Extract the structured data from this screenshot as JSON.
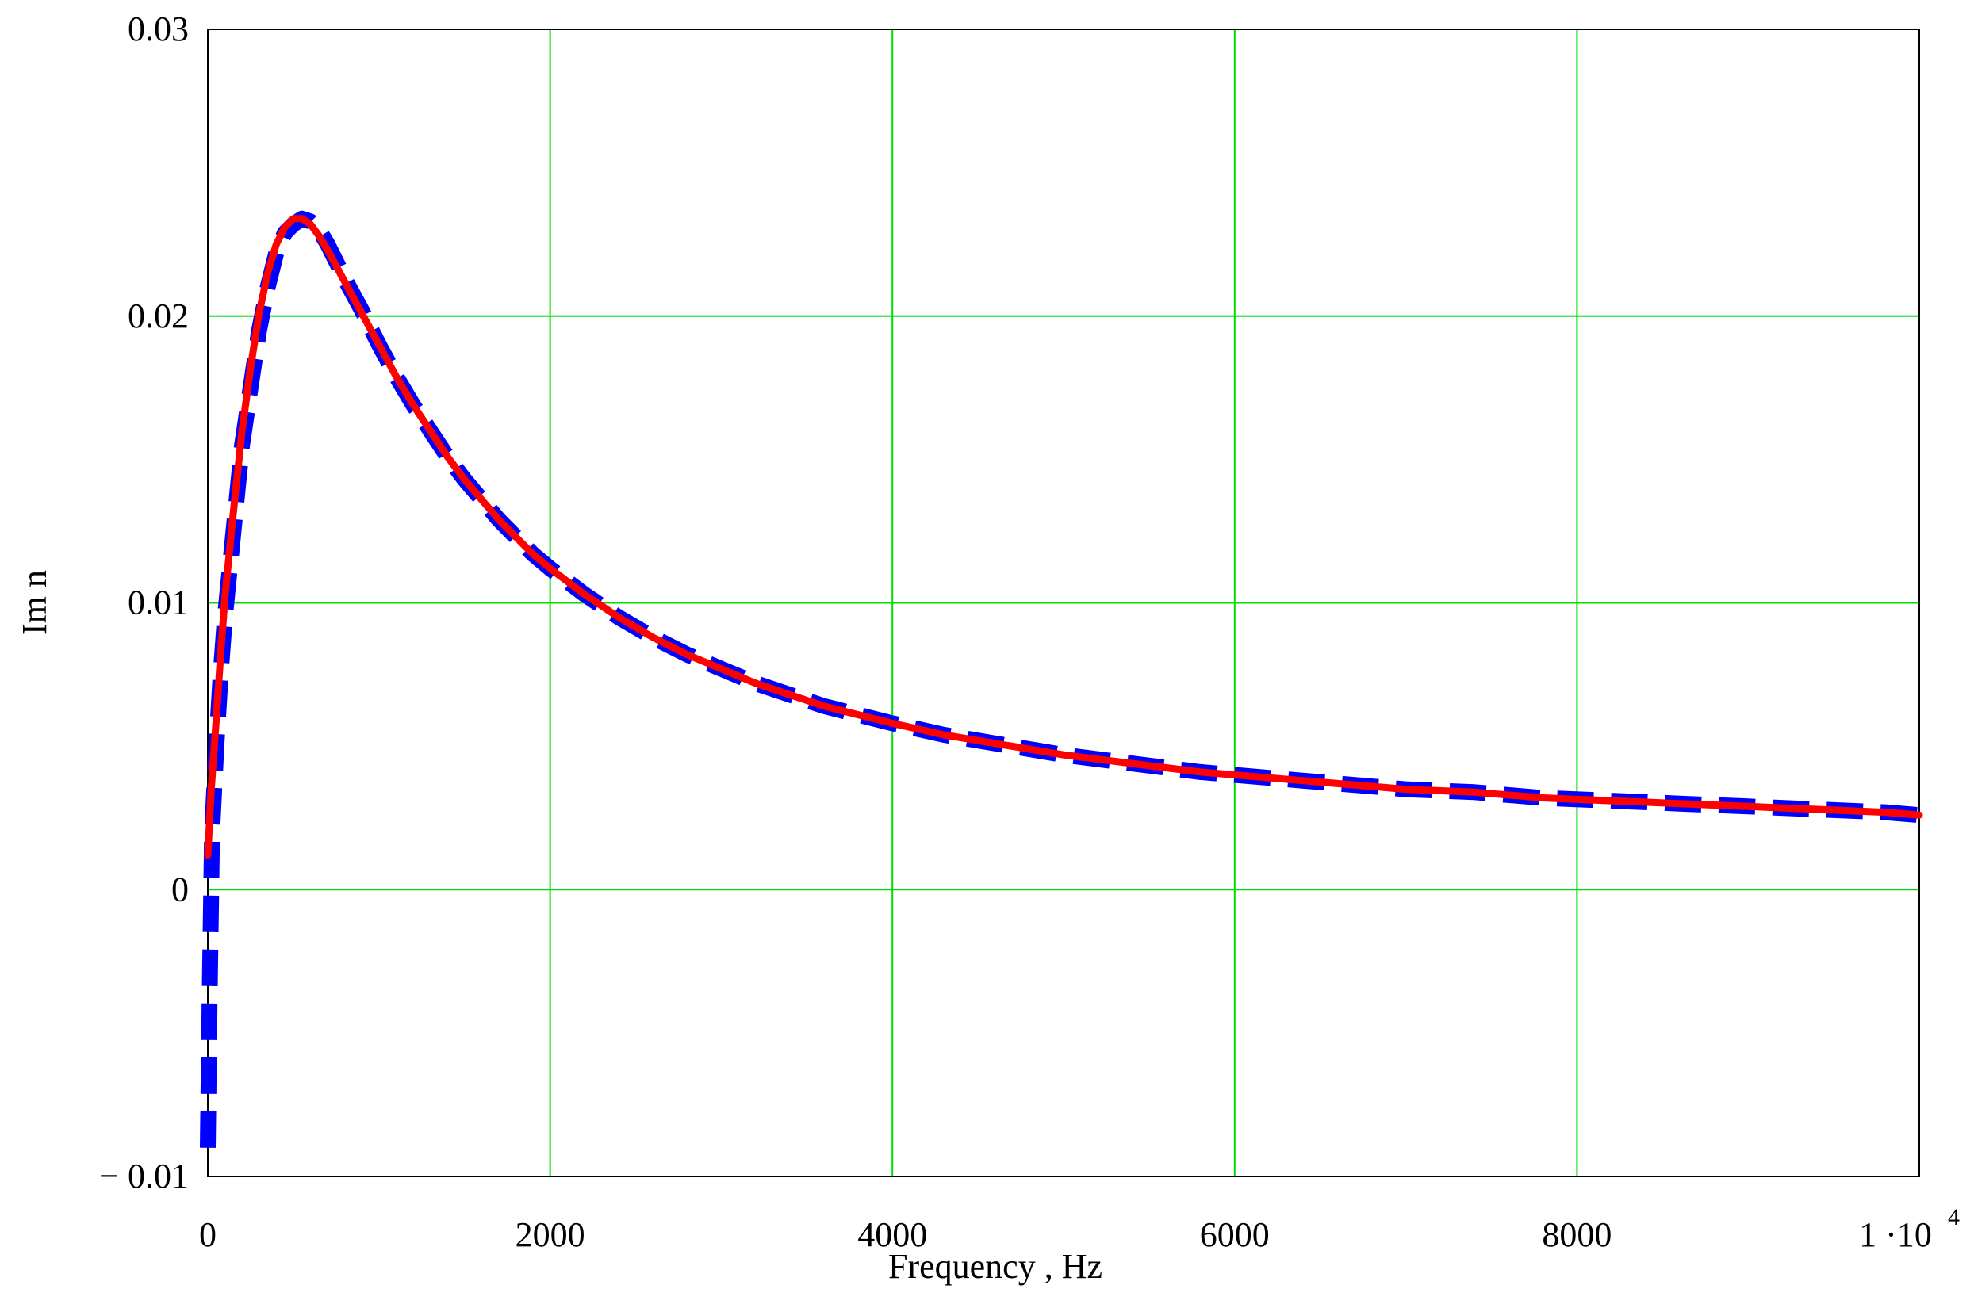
{
  "chart_data": {
    "type": "line",
    "xlabel": "Frequency , Hz",
    "ylabel": "Im n",
    "xlim": [
      0,
      10000
    ],
    "ylim": [
      -0.01,
      0.03
    ],
    "grid": true,
    "x_ticks": [
      {
        "value": 0,
        "label": "0"
      },
      {
        "value": 2000,
        "label": "2000"
      },
      {
        "value": 4000,
        "label": "4000"
      },
      {
        "value": 6000,
        "label": "6000"
      },
      {
        "value": 8000,
        "label": "8000"
      },
      {
        "value": 10000,
        "label": "1 ·10",
        "exponent": "4"
      }
    ],
    "y_ticks": [
      {
        "value": 0.03,
        "label": "0.03"
      },
      {
        "value": 0.02,
        "label": "0.02"
      },
      {
        "value": 0.01,
        "label": "0.01"
      },
      {
        "value": 0,
        "label": "0"
      },
      {
        "value": -0.01,
        "label": "− 0.01"
      }
    ],
    "colors": {
      "grid": "#00dd00",
      "measured": "#0000ff",
      "fit": "#ff0000"
    },
    "series": [
      {
        "style": "dashed",
        "color": "#0000ff",
        "x": [
          0,
          10,
          25,
          50,
          75,
          100,
          150,
          200,
          250,
          300,
          350,
          400,
          450,
          500,
          550,
          600,
          650,
          700,
          800,
          900,
          1000,
          1100,
          1200,
          1300,
          1400,
          1500,
          1600,
          1700,
          1800,
          1900,
          2000,
          2200,
          2400,
          2600,
          2800,
          3000,
          3200,
          3400,
          3600,
          3800,
          4000,
          4300,
          4600,
          5000,
          5400,
          5800,
          6200,
          6600,
          7000,
          7400,
          7800,
          8200,
          8600,
          9000,
          9400,
          9800,
          10000
        ],
        "y": [
          -0.009,
          -0.004,
          0.002,
          0.005,
          0.0075,
          0.0095,
          0.0125,
          0.0155,
          0.0175,
          0.0195,
          0.021,
          0.0222,
          0.0229,
          0.0232,
          0.0234,
          0.0233,
          0.023,
          0.0225,
          0.0213,
          0.0202,
          0.019,
          0.0179,
          0.0169,
          0.016,
          0.0151,
          0.0143,
          0.0136,
          0.0129,
          0.0123,
          0.0117,
          0.0112,
          0.0103,
          0.0095,
          0.0088,
          0.0082,
          0.0077,
          0.0072,
          0.0068,
          0.0064,
          0.0061,
          0.0058,
          0.0054,
          0.0051,
          0.0047,
          0.0044,
          0.0041,
          0.0039,
          0.0037,
          0.0035,
          0.0034,
          0.0032,
          0.0031,
          0.003,
          0.0029,
          0.0028,
          0.0027,
          0.0026
        ]
      },
      {
        "style": "solid",
        "color": "#ff0000",
        "x": [
          0,
          20,
          50,
          75,
          100,
          150,
          200,
          250,
          300,
          350,
          400,
          450,
          500,
          550,
          600,
          650,
          700,
          800,
          900,
          1000,
          1100,
          1200,
          1300,
          1400,
          1500,
          1600,
          1700,
          1800,
          1900,
          2000,
          2200,
          2400,
          2600,
          2800,
          3000,
          3200,
          3400,
          3600,
          3800,
          4000,
          4300,
          4600,
          5000,
          5400,
          5800,
          6200,
          6600,
          7000,
          7400,
          7800,
          8200,
          8600,
          9000,
          9400,
          9800,
          10000
        ],
        "y": [
          0.0012,
          0.0035,
          0.006,
          0.0082,
          0.0102,
          0.0132,
          0.016,
          0.0182,
          0.0201,
          0.0215,
          0.0225,
          0.0231,
          0.0234,
          0.0234,
          0.0232,
          0.0228,
          0.0223,
          0.0212,
          0.0201,
          0.019,
          0.0179,
          0.0169,
          0.016,
          0.0151,
          0.0143,
          0.0136,
          0.0129,
          0.0123,
          0.0117,
          0.0112,
          0.0103,
          0.0095,
          0.0088,
          0.0082,
          0.0077,
          0.0072,
          0.0068,
          0.0064,
          0.0061,
          0.0058,
          0.0054,
          0.0051,
          0.0047,
          0.0044,
          0.0041,
          0.0039,
          0.0037,
          0.0035,
          0.0034,
          0.0032,
          0.0031,
          0.003,
          0.0029,
          0.0028,
          0.0027,
          0.0026
        ]
      }
    ]
  }
}
